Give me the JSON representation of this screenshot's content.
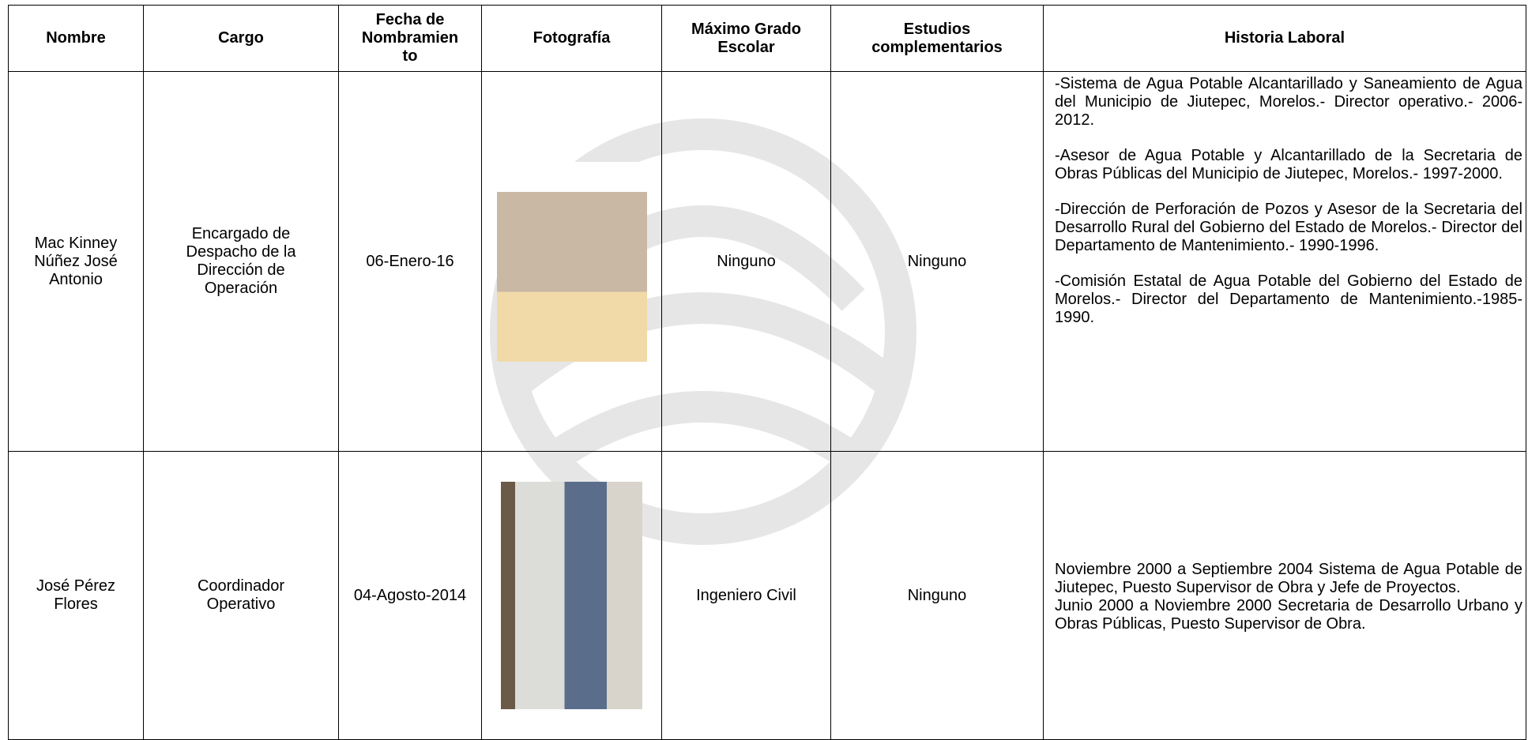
{
  "table": {
    "headers": [
      "Nombre",
      "Cargo",
      "Fecha de Nombramiento",
      "Fotografía",
      "Máximo Grado Escolar",
      "Estudios complementarios",
      "Historia Laboral"
    ],
    "rows": [
      {
        "nombre": "Mac Kinney Núñez José Antonio",
        "cargo": "Encargado de Despacho de la Dirección de Operación",
        "fecha": "06-Enero-16",
        "grado": "Ninguno",
        "estudios": "Ninguno",
        "historia": [
          "-Sistema de Agua Potable Alcantarillado y Saneamiento de Agua del Municipio de Jiutepec, Morelos.- Director operativo.- 2006-2012.",
          "-Asesor de Agua Potable y Alcantarillado de la Secretaria de Obras Públicas del Municipio de Jiutepec, Morelos.- 1997-2000.",
          "-Dirección de Perforación de Pozos y Asesor de la Secretaria del Desarrollo Rural del Gobierno del Estado de Morelos.- Director del Departamento de Mantenimiento.- 1990-1996.",
          "-Comisión Estatal de Agua Potable del Gobierno del Estado de Morelos.- Director del Departamento de Mantenimiento.-1985-1990."
        ]
      },
      {
        "nombre": "José Pérez Flores",
        "cargo": "Coordinador Operativo",
        "fecha": "04-Agosto-2014",
        "grado": "Ingeniero Civil",
        "estudios": "Ninguno",
        "historia": [
          "Noviembre 2000 a Septiembre 2004 Sistema de Agua Potable de Jiutepec, Puesto Supervisor de Obra y Jefe de Proyectos.",
          "Junio 2000 a Noviembre 2000 Secretaria de Desarrollo Urbano y Obras Públicas, Puesto Supervisor de Obra."
        ]
      }
    ]
  }
}
